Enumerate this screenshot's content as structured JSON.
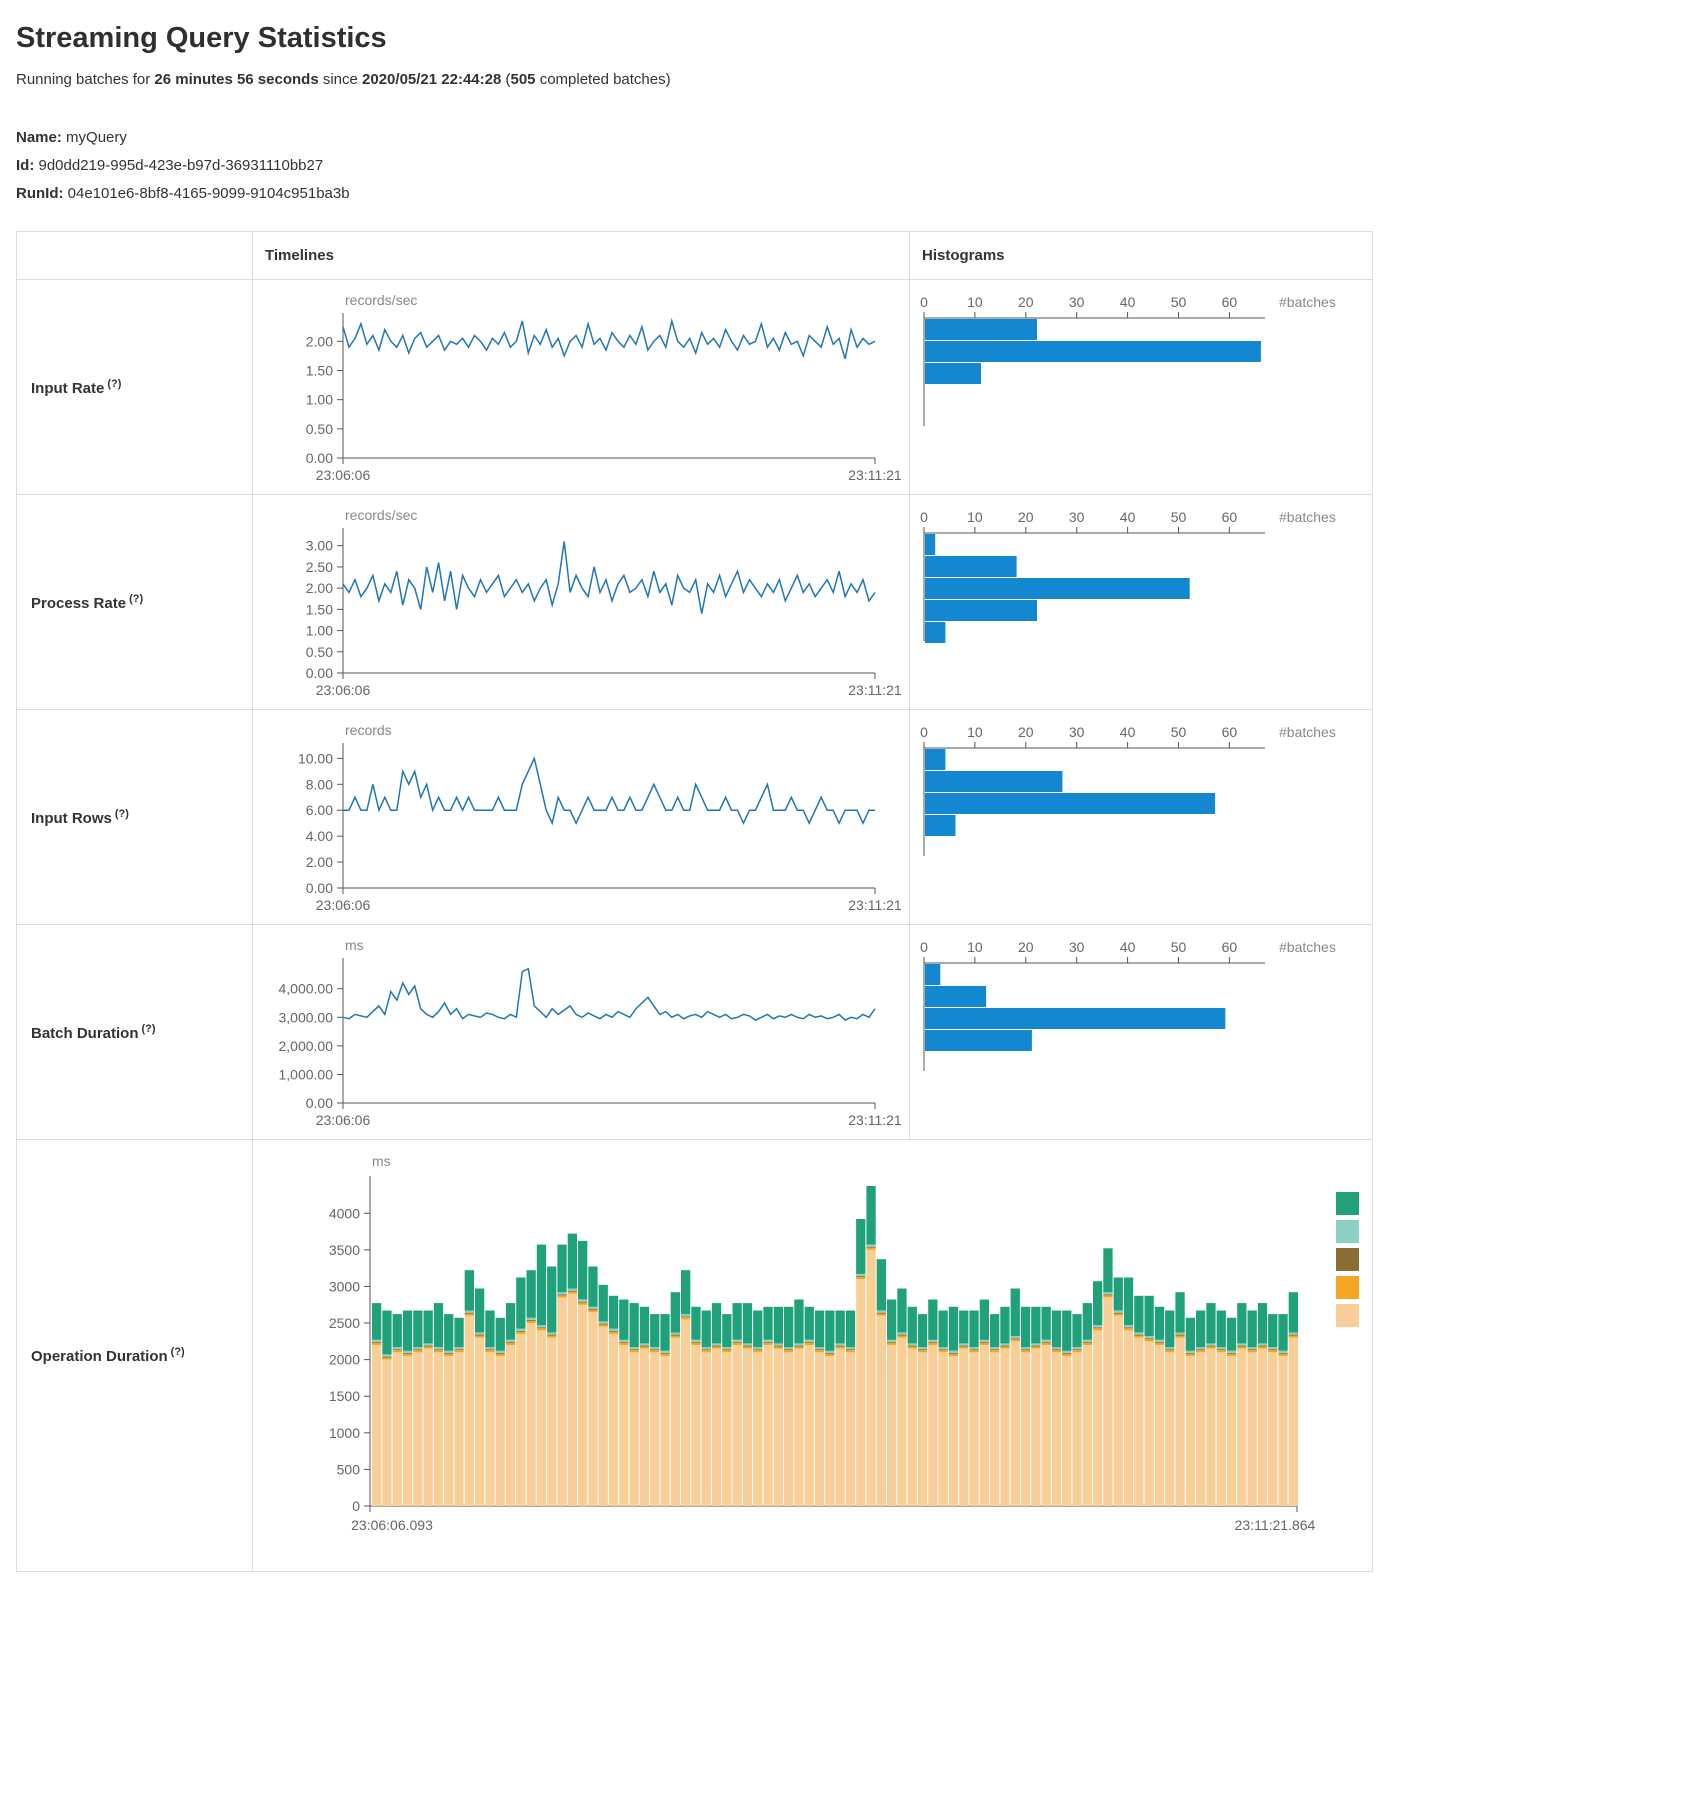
{
  "page": {
    "title": "Streaming Query Statistics",
    "running_prefix": "Running batches for ",
    "running_duration": "26 minutes 56 seconds",
    "running_mid": " since ",
    "running_since": "2020/05/21 22:44:28",
    "running_paren": " (",
    "running_batches": "505",
    "running_suffix": " completed batches)"
  },
  "query": {
    "name_label": "Name:",
    "name": "myQuery",
    "id_label": "Id:",
    "id": "9d0dd219-995d-423e-b97d-36931110bb27",
    "runid_label": "RunId:",
    "runid": "04e101e6-8bf8-4165-9099-9104c951ba3b"
  },
  "table": {
    "timelines_header": "Timelines",
    "histograms_header": "Histograms",
    "rows": [
      {
        "label": "Input Rate",
        "help": "(?)"
      },
      {
        "label": "Process Rate",
        "help": "(?)"
      },
      {
        "label": "Input Rows",
        "help": "(?)"
      },
      {
        "label": "Batch Duration",
        "help": "(?)"
      },
      {
        "label": "Operation Duration",
        "help": "(?)"
      }
    ]
  },
  "colors": {
    "line_blue": "#1f77b4",
    "hist_blue": "#1387d0",
    "axis": "#555",
    "tick_text": "#666",
    "unit_text": "#888"
  },
  "chart_data": {
    "input_rate_timeline": {
      "type": "line",
      "unit": "records/sec",
      "ymax": 2.4,
      "ytick_values": [
        0,
        0.5,
        1,
        1.5,
        2
      ],
      "ytick_labels": [
        "0.00",
        "0.50",
        "1.00",
        "1.50",
        "2.00"
      ],
      "x_start": "23:06:06",
      "x_end": "23:11:21",
      "values": [
        2.25,
        1.9,
        2.05,
        2.3,
        1.95,
        2.1,
        1.85,
        2.2,
        2.0,
        1.9,
        2.1,
        1.8,
        2.05,
        2.15,
        1.9,
        2.0,
        2.1,
        1.85,
        2.0,
        1.95,
        2.05,
        1.9,
        2.1,
        2.0,
        1.85,
        2.05,
        1.95,
        2.15,
        1.9,
        2.0,
        2.35,
        1.8,
        2.1,
        1.95,
        2.2,
        1.9,
        2.05,
        1.75,
        2.0,
        2.1,
        1.9,
        2.3,
        1.95,
        2.05,
        1.85,
        2.15,
        2.0,
        1.9,
        2.1,
        1.95,
        2.25,
        1.85,
        2.0,
        2.1,
        1.9,
        2.35,
        2.0,
        1.9,
        2.05,
        1.8,
        2.15,
        1.95,
        2.05,
        1.9,
        2.2,
        2.0,
        1.85,
        2.1,
        1.95,
        2.0,
        2.3,
        1.9,
        2.05,
        1.85,
        2.15,
        1.95,
        2.0,
        1.75,
        2.1,
        2.0,
        1.9,
        2.25,
        1.95,
        2.05,
        1.7,
        2.2,
        1.9,
        2.05,
        1.95,
        2.0
      ]
    },
    "input_rate_hist": {
      "type": "histogram",
      "label": "#batches",
      "xtick_values": [
        0,
        10,
        20,
        30,
        40,
        50,
        60
      ],
      "xmax": 67,
      "counts": [
        22,
        66,
        11
      ]
    },
    "process_rate_timeline": {
      "type": "line",
      "unit": "records/sec",
      "ymax": 3.3,
      "ytick_values": [
        0,
        0.5,
        1,
        1.5,
        2,
        2.5,
        3
      ],
      "ytick_labels": [
        "0.00",
        "0.50",
        "1.00",
        "1.50",
        "2.00",
        "2.50",
        "3.00"
      ],
      "x_start": "23:06:06",
      "x_end": "23:11:21",
      "values": [
        2.1,
        1.9,
        2.2,
        1.8,
        2.0,
        2.3,
        1.7,
        2.1,
        1.9,
        2.4,
        1.6,
        2.2,
        2.0,
        1.5,
        2.5,
        1.9,
        2.6,
        1.7,
        2.4,
        1.5,
        2.3,
        2.0,
        1.8,
        2.2,
        1.9,
        2.1,
        2.3,
        1.8,
        2.0,
        2.2,
        1.9,
        2.1,
        1.7,
        2.0,
        2.2,
        1.6,
        2.1,
        3.1,
        1.9,
        2.3,
        2.0,
        1.8,
        2.5,
        1.9,
        2.2,
        1.7,
        2.1,
        2.3,
        1.9,
        2.0,
        2.2,
        1.8,
        2.4,
        1.9,
        2.1,
        1.6,
        2.3,
        2.0,
        1.9,
        2.2,
        1.4,
        2.1,
        1.9,
        2.3,
        1.8,
        2.1,
        2.4,
        1.9,
        2.2,
        2.0,
        1.8,
        2.1,
        1.9,
        2.2,
        1.7,
        2.0,
        2.3,
        1.9,
        2.1,
        1.8,
        2.0,
        2.2,
        1.9,
        2.4,
        1.8,
        2.1,
        1.9,
        2.2,
        1.7,
        1.9
      ]
    },
    "process_rate_hist": {
      "type": "histogram",
      "label": "#batches",
      "xtick_values": [
        0,
        10,
        20,
        30,
        40,
        50,
        60
      ],
      "xmax": 67,
      "counts": [
        2,
        18,
        52,
        22,
        4
      ]
    },
    "input_rows_timeline": {
      "type": "line",
      "unit": "records",
      "ymax": 10.8,
      "ytick_values": [
        0,
        2,
        4,
        6,
        8,
        10
      ],
      "ytick_labels": [
        "0.00",
        "2.00",
        "4.00",
        "6.00",
        "8.00",
        "10.00"
      ],
      "x_start": "23:06:06",
      "x_end": "23:11:21",
      "values": [
        6,
        6,
        7,
        6,
        6,
        8,
        6,
        7,
        6,
        6,
        9,
        8,
        9,
        7,
        8,
        6,
        7,
        6,
        6,
        7,
        6,
        7,
        6,
        6,
        6,
        6,
        7,
        6,
        6,
        6,
        8,
        9,
        10,
        8,
        6,
        5,
        7,
        6,
        6,
        5,
        6,
        7,
        6,
        6,
        6,
        7,
        6,
        6,
        7,
        6,
        6,
        7,
        8,
        7,
        6,
        6,
        7,
        6,
        6,
        8,
        7,
        6,
        6,
        6,
        7,
        6,
        6,
        5,
        6,
        6,
        7,
        8,
        6,
        6,
        6,
        7,
        6,
        6,
        5,
        6,
        7,
        6,
        6,
        5,
        6,
        6,
        6,
        5,
        6,
        6
      ]
    },
    "input_rows_hist": {
      "type": "histogram",
      "label": "#batches",
      "xtick_values": [
        0,
        10,
        20,
        30,
        40,
        50,
        60
      ],
      "xmax": 67,
      "counts": [
        4,
        27,
        57,
        6
      ]
    },
    "batch_duration_timeline": {
      "type": "line",
      "unit": "ms",
      "ymax": 4900,
      "ytick_values": [
        0,
        1000,
        2000,
        3000,
        4000
      ],
      "ytick_labels": [
        "0.00",
        "1,000.00",
        "2,000.00",
        "3,000.00",
        "4,000.00"
      ],
      "x_start": "23:06:06",
      "x_end": "23:11:21",
      "values": [
        3000,
        2950,
        3100,
        3050,
        3000,
        3200,
        3400,
        3100,
        3900,
        3600,
        4200,
        3800,
        4100,
        3300,
        3100,
        3000,
        3200,
        3500,
        3100,
        3300,
        2950,
        3100,
        3050,
        3000,
        3150,
        3100,
        3000,
        2950,
        3100,
        3000,
        4600,
        4700,
        3400,
        3200,
        3000,
        3300,
        3100,
        3250,
        3400,
        3100,
        3000,
        3150,
        3050,
        2950,
        3100,
        3000,
        3200,
        3100,
        3000,
        3300,
        3500,
        3700,
        3400,
        3100,
        3200,
        3000,
        3100,
        2950,
        3050,
        3100,
        3000,
        3200,
        3100,
        3000,
        3100,
        2950,
        3000,
        3100,
        3050,
        2900,
        3000,
        3100,
        2950,
        3050,
        3000,
        3100,
        3000,
        2950,
        3100,
        3000,
        3050,
        2950,
        3000,
        3100,
        2900,
        3000,
        2950,
        3100,
        3000,
        3300
      ]
    },
    "batch_duration_hist": {
      "type": "histogram",
      "label": "#batches",
      "xtick_values": [
        0,
        10,
        20,
        30,
        40,
        50,
        60
      ],
      "xmax": 67,
      "counts": [
        3,
        12,
        59,
        21
      ]
    },
    "operation_duration": {
      "type": "stacked",
      "unit": "ms",
      "ymax": 4400,
      "ytick_values": [
        0,
        500,
        1000,
        1500,
        2000,
        2500,
        3000,
        3500,
        4000
      ],
      "ytick_labels": [
        "0",
        "500",
        "1000",
        "1500",
        "2000",
        "2500",
        "3000",
        "3500",
        "4000"
      ],
      "x_start": "23:06:06.093",
      "x_end": "23:11:21.864",
      "series_order": [
        "tan",
        "orange",
        "dark",
        "seafoam",
        "teal"
      ],
      "series_colors": {
        "tan": "#f8cf96",
        "orange": "#f5a623",
        "dark": "#8c6d31",
        "seafoam": "#8bd0c3",
        "teal": "#21a179"
      },
      "minor": {
        "orange": 30,
        "dark": 12,
        "seafoam": 30
      },
      "tan": [
        2200,
        2000,
        2100,
        2050,
        2100,
        2150,
        2100,
        2050,
        2100,
        2600,
        2300,
        2100,
        2050,
        2200,
        2350,
        2500,
        2400,
        2300,
        2850,
        2900,
        2750,
        2650,
        2450,
        2350,
        2200,
        2100,
        2150,
        2100,
        2050,
        2300,
        2550,
        2200,
        2100,
        2150,
        2100,
        2200,
        2150,
        2100,
        2200,
        2150,
        2100,
        2150,
        2200,
        2100,
        2050,
        2150,
        2100,
        3100,
        3500,
        2600,
        2200,
        2300,
        2150,
        2100,
        2200,
        2100,
        2050,
        2150,
        2100,
        2200,
        2100,
        2150,
        2250,
        2100,
        2150,
        2200,
        2100,
        2050,
        2100,
        2200,
        2400,
        2850,
        2600,
        2400,
        2300,
        2250,
        2200,
        2100,
        2300,
        2050,
        2100,
        2150,
        2100,
        2050,
        2150,
        2100,
        2150,
        2100,
        2050,
        2300
      ],
      "teal": [
        500,
        600,
        450,
        550,
        500,
        450,
        600,
        500,
        400,
        550,
        600,
        500,
        450,
        500,
        700,
        650,
        1100,
        900,
        650,
        750,
        800,
        550,
        500,
        450,
        550,
        600,
        500,
        450,
        500,
        550,
        600,
        450,
        500,
        550,
        450,
        500,
        550,
        500,
        450,
        500,
        550,
        600,
        450,
        500,
        550,
        450,
        500,
        750,
        800,
        700,
        550,
        600,
        500,
        450,
        550,
        500,
        600,
        450,
        500,
        550,
        450,
        500,
        650,
        550,
        500,
        450,
        500,
        550,
        450,
        500,
        600,
        600,
        450,
        650,
        500,
        550,
        450,
        500,
        550,
        450,
        500,
        550,
        500,
        450,
        550,
        500,
        550,
        450,
        500,
        550
      ],
      "legend_colors": [
        "#21a179",
        "#8bd0c3",
        "#8c6d31",
        "#f5a623",
        "#f8cf96"
      ]
    }
  }
}
